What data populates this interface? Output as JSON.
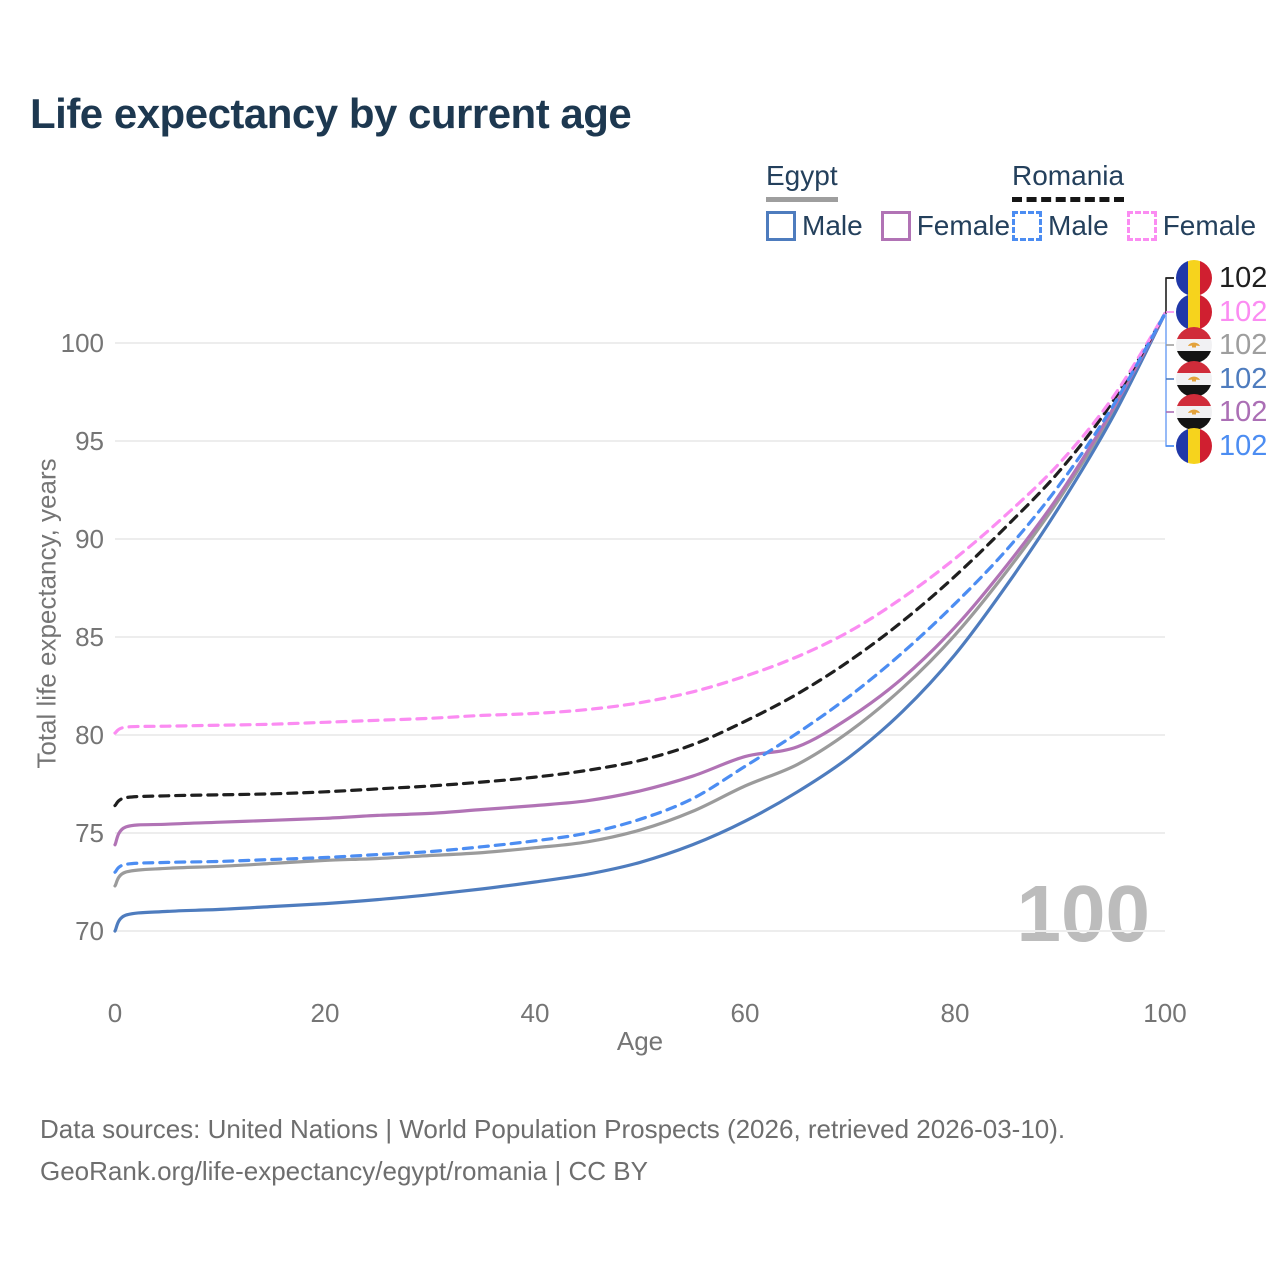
{
  "page": {
    "title": "Life expectancy by current age"
  },
  "legend": {
    "groups": [
      {
        "name": "Egypt",
        "style": "solid",
        "items": [
          {
            "label": "Male",
            "color": "#4e7cbe",
            "dash": false
          },
          {
            "label": "Female",
            "color": "#b173b5",
            "dash": false
          }
        ]
      },
      {
        "name": "Romania",
        "style": "dashed",
        "items": [
          {
            "label": "Male",
            "color": "#4c8df2",
            "dash": true
          },
          {
            "label": "Female",
            "color": "#fb8cf2",
            "dash": true
          }
        ]
      }
    ]
  },
  "chart_data": {
    "type": "line",
    "title": "Life expectancy by current age",
    "xlabel": "Age",
    "ylabel": "Total life expectancy, years",
    "xlim": [
      0,
      100
    ],
    "ylim": [
      68,
      103
    ],
    "xticks": [
      0,
      20,
      40,
      60,
      80,
      100
    ],
    "yticks": [
      70,
      75,
      80,
      85,
      90,
      95,
      100
    ],
    "grid": "horizontal-only",
    "legend_position": "top-right",
    "watermark": "100",
    "x": [
      0,
      1,
      5,
      10,
      15,
      20,
      25,
      30,
      35,
      40,
      45,
      50,
      55,
      60,
      65,
      70,
      75,
      80,
      85,
      90,
      95,
      100
    ],
    "series": [
      {
        "name": "Egypt Persons",
        "country": "Egypt",
        "sex": "persons",
        "color": "#9b9b9b",
        "dash": false,
        "values": [
          72.3,
          73.0,
          73.2,
          73.3,
          73.45,
          73.6,
          73.7,
          73.85,
          74.0,
          74.25,
          74.55,
          75.15,
          76.1,
          77.4,
          78.5,
          80.2,
          82.4,
          85.1,
          88.4,
          92.1,
          96.45,
          101.5
        ]
      },
      {
        "name": "Egypt Male",
        "country": "Egypt",
        "sex": "male",
        "color": "#4e7cbe",
        "dash": false,
        "values": [
          70.0,
          70.8,
          71.0,
          71.1,
          71.25,
          71.4,
          71.6,
          71.85,
          72.15,
          72.5,
          72.9,
          73.5,
          74.4,
          75.6,
          77.1,
          78.9,
          81.2,
          84.1,
          87.7,
          91.7,
          96.2,
          101.5
        ]
      },
      {
        "name": "Egypt Female",
        "country": "Egypt",
        "sex": "female",
        "color": "#b173b5",
        "dash": false,
        "values": [
          74.4,
          75.3,
          75.45,
          75.55,
          75.65,
          75.75,
          75.9,
          76.0,
          76.2,
          76.4,
          76.65,
          77.15,
          77.9,
          78.9,
          79.4,
          80.9,
          82.9,
          85.5,
          88.7,
          92.3,
          96.6,
          101.5
        ]
      },
      {
        "name": "Romania Persons",
        "country": "Romania",
        "sex": "persons",
        "color": "#1f1f1f",
        "dash": true,
        "values": [
          76.4,
          76.8,
          76.9,
          76.95,
          77.0,
          77.1,
          77.25,
          77.4,
          77.6,
          77.85,
          78.2,
          78.7,
          79.5,
          80.7,
          82.1,
          83.8,
          85.8,
          88.1,
          90.7,
          93.5,
          97.0,
          101.5
        ]
      },
      {
        "name": "Romania Female",
        "country": "Romania",
        "sex": "female",
        "color": "#fb8cf2",
        "dash": true,
        "values": [
          80.1,
          80.4,
          80.45,
          80.5,
          80.55,
          80.65,
          80.75,
          80.85,
          81.0,
          81.1,
          81.3,
          81.65,
          82.2,
          83.0,
          84.0,
          85.3,
          87.0,
          89.0,
          91.3,
          93.9,
          97.2,
          101.5
        ]
      },
      {
        "name": "Romania Male",
        "country": "Romania",
        "sex": "male",
        "color": "#4c8df2",
        "dash": true,
        "values": [
          73.0,
          73.4,
          73.5,
          73.55,
          73.65,
          73.75,
          73.9,
          74.05,
          74.3,
          74.6,
          75.0,
          75.7,
          76.75,
          78.4,
          80.1,
          82.0,
          84.2,
          86.7,
          89.5,
          92.8,
          96.75,
          101.5
        ]
      }
    ],
    "end_labels": [
      {
        "flag": "romania",
        "value": "102",
        "color": "#1f1f1f",
        "series": "Romania Persons"
      },
      {
        "flag": "romania",
        "value": "102",
        "color": "#fb8cf2",
        "series": "Romania Female"
      },
      {
        "flag": "egypt",
        "value": "102",
        "color": "#9e9e9e",
        "series": "Egypt Persons"
      },
      {
        "flag": "egypt",
        "value": "102",
        "color": "#4e7cbe",
        "series": "Egypt Male"
      },
      {
        "flag": "egypt",
        "value": "102",
        "color": "#ab6fb5",
        "series": "Egypt Female"
      },
      {
        "flag": "romania",
        "value": "102",
        "color": "#4c8df2",
        "series": "Romania Male"
      }
    ],
    "flag_colors": {
      "romania": [
        "#2038a8",
        "#f6d31d",
        "#d01f30"
      ],
      "egypt": [
        "#d02c3a",
        "#f1f1f3",
        "#141414"
      ],
      "egypt_emblem": "#e3a23b"
    }
  },
  "footer": {
    "line1": "Data sources: United Nations | World Population Prospects (2026, retrieved 2026-03-10).",
    "line2": "GeoRank.org/life-expectancy/egypt/romania | CC BY"
  }
}
